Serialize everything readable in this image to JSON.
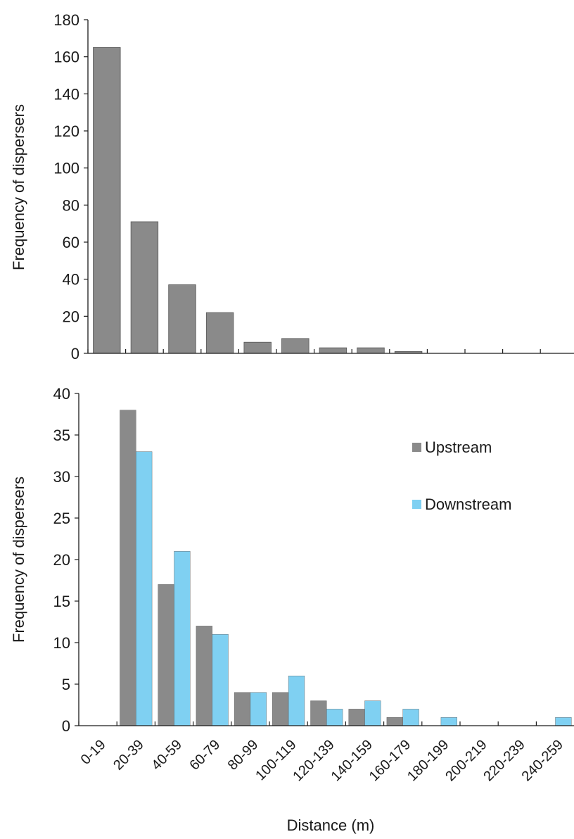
{
  "colors": {
    "upstream": "#8a8a8a",
    "downstream": "#7fd0f2",
    "axis": "#1a1a1a"
  },
  "chart_data": [
    {
      "type": "bar",
      "title": "",
      "xlabel": "",
      "ylabel": "Frequency of dispersers",
      "ylim": [
        0,
        180
      ],
      "yticks": [
        0,
        20,
        40,
        60,
        80,
        100,
        120,
        140,
        160,
        180
      ],
      "categories": [
        "0-19",
        "20-39",
        "40-59",
        "60-79",
        "80-99",
        "100-119",
        "120-139",
        "140-159",
        "160-179",
        "180-199",
        "200-219",
        "220-239",
        "240-259"
      ],
      "series": [
        {
          "values": [
            165,
            71,
            37,
            22,
            6,
            8,
            3,
            3,
            1,
            0,
            0,
            0,
            0
          ]
        }
      ],
      "grid": false,
      "legend": null
    },
    {
      "type": "bar",
      "title": "",
      "xlabel": "Distance (m)",
      "ylabel": "Frequency of dispersers",
      "ylim": [
        0,
        40
      ],
      "yticks": [
        0,
        5,
        10,
        15,
        20,
        25,
        30,
        35,
        40
      ],
      "categories": [
        "0-19",
        "20-39",
        "40-59",
        "60-79",
        "80-99",
        "100-119",
        "120-139",
        "140-159",
        "160-179",
        "180-199",
        "200-219",
        "220-239",
        "240-259"
      ],
      "series": [
        {
          "name": "Upstream",
          "values": [
            0,
            38,
            17,
            12,
            4,
            4,
            3,
            2,
            1,
            0,
            0,
            0,
            0
          ]
        },
        {
          "name": "Downstream",
          "values": [
            0,
            33,
            21,
            11,
            4,
            6,
            2,
            3,
            2,
            1,
            0,
            0,
            1
          ]
        }
      ],
      "grid": false,
      "legend": "upper-right"
    }
  ]
}
